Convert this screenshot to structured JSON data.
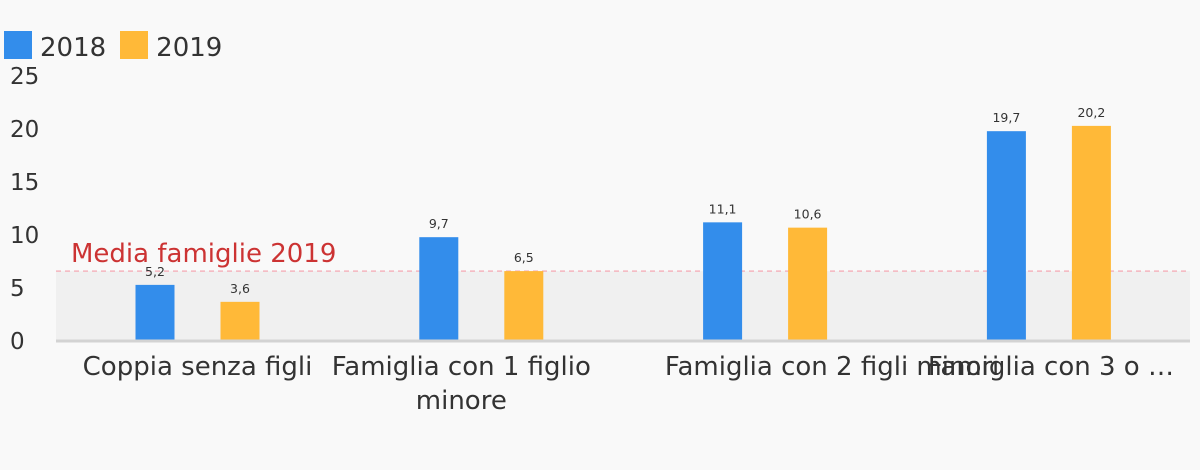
{
  "chart_data": {
    "type": "bar",
    "categories": [
      "Coppia senza figli",
      "Famiglia con 1 figlio minore",
      "Famiglia con 2 figli minori",
      "Famiglia con 3 o …"
    ],
    "category_lines": [
      [
        "Coppia senza figli"
      ],
      [
        "Famiglia con 1 figlio",
        "minore"
      ],
      [
        "Famiglia con 2 figli minori"
      ],
      [
        "Famiglia con 3 o …"
      ]
    ],
    "series": [
      {
        "name": "2018",
        "values": [
          5.2,
          9.7,
          11.1,
          19.7
        ],
        "labels": [
          "5,2",
          "9,7",
          "11,1",
          "19,7"
        ],
        "color": "#338deb"
      },
      {
        "name": "2019",
        "values": [
          3.6,
          6.5,
          10.6,
          20.2
        ],
        "labels": [
          "3,6",
          "6,5",
          "10,6",
          "20,2"
        ],
        "color": "#ffb938"
      }
    ],
    "yticks": [
      "0",
      "5",
      "10",
      "15",
      "20",
      "25"
    ],
    "ylim": [
      0,
      25
    ],
    "title": "",
    "xlabel": "",
    "ylabel": "",
    "legend_position": "top-left",
    "reference_line": {
      "value": 6.5,
      "label": "Media famiglie 2019",
      "color": "#cc3333"
    },
    "grid": false
  }
}
